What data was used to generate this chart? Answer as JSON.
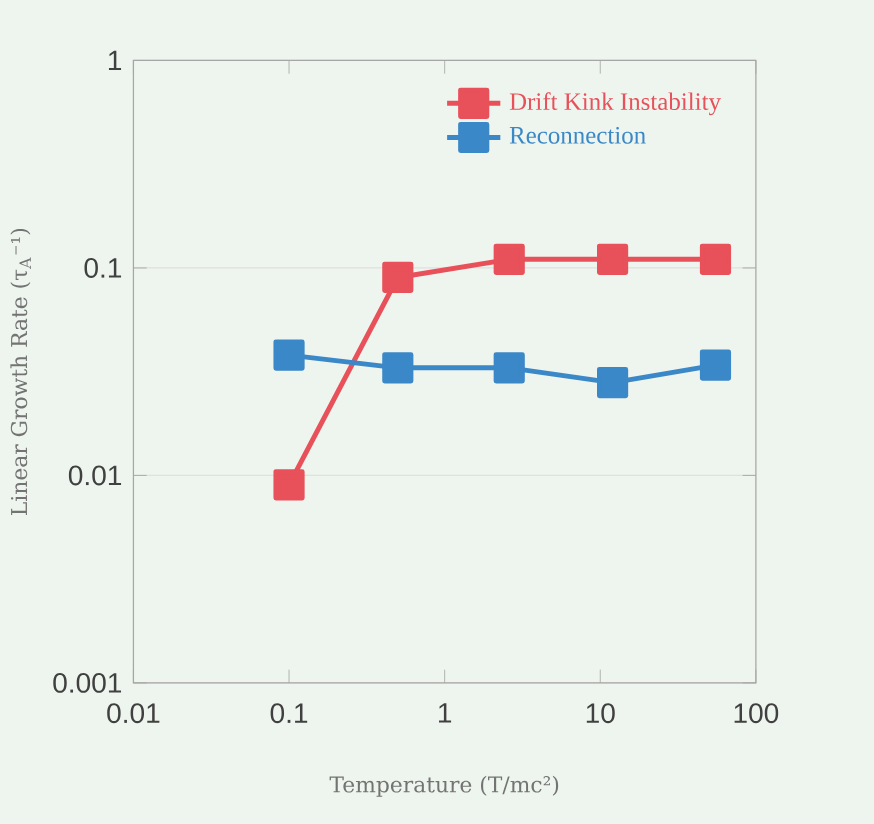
{
  "chart_data": {
    "type": "line",
    "xlabel": "Temperature (T/mc²)",
    "ylabel": "Linear Growth Rate (τ$_{A}$⁻¹)",
    "log": "xy",
    "x": [
      0.1,
      0.5,
      2.6,
      12,
      55
    ],
    "series": [
      {
        "name": "Drift Kink Instability",
        "color": "#e8505a",
        "values": [
          0.009,
          0.09,
          0.11,
          0.11,
          0.11
        ]
      },
      {
        "name": "Reconnection",
        "color": "#3a88c8",
        "values": [
          0.038,
          0.033,
          0.033,
          0.028,
          0.034
        ]
      }
    ],
    "xlim": [
      0.01,
      100
    ],
    "ylim": [
      0.001,
      1
    ],
    "xticks": [
      0.01,
      0.1,
      1,
      10,
      100
    ],
    "yticks": [
      0.001,
      0.01,
      0.1,
      1
    ],
    "grid": "y",
    "legend": "top right",
    "marker": "square",
    "line_style": "solid"
  }
}
